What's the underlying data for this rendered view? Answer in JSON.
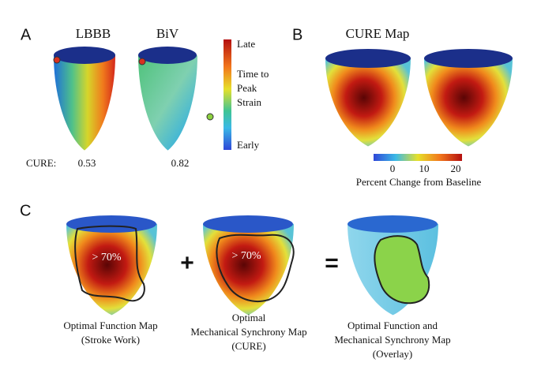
{
  "panel_a": {
    "label": "A",
    "hearts": [
      {
        "title": "LBBB",
        "cure": 0.53
      },
      {
        "title": "BiV",
        "cure": 0.82
      }
    ],
    "cure_label": "CURE:",
    "colorbar": {
      "top": "Late",
      "middle": [
        "Time to",
        "Peak",
        "Strain"
      ],
      "bottom": "Early"
    }
  },
  "panel_b": {
    "label": "B",
    "title": "CURE Map",
    "colorbar": {
      "ticks": [
        0,
        10,
        20
      ],
      "label": "Percent Change from Baseline"
    }
  },
  "panel_c": {
    "label": "C",
    "operators": [
      "+",
      "="
    ],
    "maps": [
      {
        "annotation": "> 70%",
        "caption": [
          "Optimal Function Map",
          "(Stroke Work)"
        ]
      },
      {
        "annotation": "> 70%",
        "caption": [
          "Optimal",
          "Mechanical Synchrony Map",
          "(CURE)"
        ]
      },
      {
        "caption": [
          "Optimal Function and",
          "Mechanical Synchrony Map",
          "(Overlay)"
        ]
      }
    ]
  }
}
